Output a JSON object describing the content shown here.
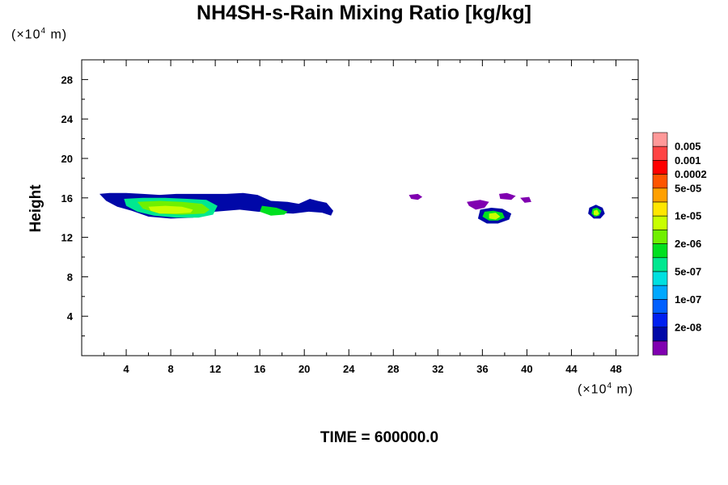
{
  "chart_data": {
    "type": "heatmap",
    "title": "NH4SH-s-Rain Mixing Ratio [kg/kg]",
    "ylabel": "Height",
    "y_unit": {
      "prefix": "(×10",
      "exp": "4",
      "suffix": " m)"
    },
    "x_unit": {
      "prefix": "(×10",
      "exp": "4",
      "suffix": " m)"
    },
    "xlim": [
      0,
      50
    ],
    "ylim": [
      0,
      30
    ],
    "x_ticks": [
      4,
      8,
      12,
      16,
      20,
      24,
      28,
      32,
      36,
      40,
      44,
      48
    ],
    "y_ticks": [
      4,
      8,
      12,
      16,
      20,
      24,
      28
    ],
    "footer": "TIME = 600000.0",
    "legend": {
      "colors": [
        "#ff9999",
        "#ff4444",
        "#ff0000",
        "#ff5500",
        "#ffa000",
        "#ffe600",
        "#c8ff00",
        "#70f000",
        "#00e020",
        "#00e890",
        "#00e0e0",
        "#00a8ff",
        "#0060ff",
        "#0020f0",
        "#0008a8",
        "#8000b0"
      ],
      "labels": [
        "0.005",
        "0.001",
        "0.0002",
        "5e-05",
        "1e-05",
        "2e-06",
        "5e-07",
        "1e-07",
        "2e-08"
      ]
    },
    "blobs": [
      {
        "x": [
          1.6,
          2.5,
          4.0,
          5.5,
          7.0,
          8.5,
          10.0,
          11.5,
          13.0,
          14.5,
          15.8,
          17.0,
          18.5,
          19.5,
          20.5,
          21.2,
          22.0,
          22.6,
          22.4,
          21.6,
          20.4,
          19.0,
          17.2,
          15.8,
          14.2,
          12.0,
          10.0,
          8.0,
          6.0,
          4.5,
          3.2,
          2.2
        ],
        "y": [
          16.4,
          16.5,
          16.5,
          16.4,
          16.3,
          16.4,
          16.4,
          16.4,
          16.4,
          16.5,
          16.3,
          15.7,
          15.6,
          15.4,
          15.9,
          15.7,
          15.5,
          14.7,
          14.2,
          14.5,
          14.6,
          14.4,
          14.5,
          14.6,
          14.8,
          14.6,
          14.0,
          13.9,
          14.1,
          14.7,
          15.1,
          15.7
        ],
        "level": 1
      },
      {
        "x": [
          3.8,
          5.5,
          7.5,
          9.5,
          11.2,
          12.2,
          11.8,
          10.5,
          8.5,
          6.5,
          5.0,
          4.0
        ],
        "y": [
          15.9,
          16.0,
          16.0,
          15.9,
          15.8,
          15.2,
          14.3,
          14.0,
          14.0,
          14.2,
          14.6,
          15.2
        ],
        "level": 6
      },
      {
        "x": [
          5.0,
          7.0,
          9.0,
          10.8,
          11.5,
          11.0,
          9.0,
          7.0,
          5.5
        ],
        "y": [
          15.6,
          15.7,
          15.6,
          15.4,
          14.8,
          14.4,
          14.3,
          14.4,
          14.9
        ],
        "level": 8
      },
      {
        "x": [
          6.0,
          7.5,
          9.0,
          10.0,
          9.8,
          8.5,
          7.0,
          6.2
        ],
        "y": [
          15.1,
          15.2,
          15.1,
          14.8,
          14.5,
          14.4,
          14.4,
          14.7
        ],
        "level": 9
      },
      {
        "x": [
          16.2,
          17.5,
          18.5,
          18.2,
          17.0,
          16.0
        ],
        "y": [
          15.2,
          15.0,
          14.6,
          14.3,
          14.2,
          14.6
        ],
        "level": 7
      },
      {
        "x": [
          29.4,
          30.2,
          30.6,
          30.2,
          29.6
        ],
        "y": [
          16.3,
          16.4,
          16.1,
          15.8,
          15.9
        ],
        "level": 0
      },
      {
        "x": [
          34.6,
          35.8,
          36.6,
          36.2,
          35.4,
          34.8
        ],
        "y": [
          15.6,
          15.8,
          15.6,
          15.0,
          14.8,
          15.2
        ],
        "level": 0
      },
      {
        "x": [
          37.5,
          38.2,
          39.0,
          38.6,
          37.6
        ],
        "y": [
          16.4,
          16.5,
          16.2,
          15.8,
          15.9
        ],
        "level": 0
      },
      {
        "x": [
          39.4,
          40.2,
          40.4,
          39.8
        ],
        "y": [
          16.0,
          16.1,
          15.6,
          15.5
        ],
        "level": 0
      },
      {
        "x": [
          35.8,
          36.8,
          37.8,
          38.6,
          38.4,
          37.4,
          36.4,
          35.6
        ],
        "y": [
          14.8,
          15.0,
          14.9,
          14.4,
          13.8,
          13.4,
          13.4,
          13.9
        ],
        "level": 1
      },
      {
        "x": [
          36.2,
          37.0,
          37.8,
          38.0,
          37.4,
          36.6,
          36.0
        ],
        "y": [
          14.6,
          14.7,
          14.5,
          14.0,
          13.7,
          13.7,
          14.1
        ],
        "level": 7
      },
      {
        "x": [
          36.6,
          37.2,
          37.6,
          37.2,
          36.6
        ],
        "y": [
          14.4,
          14.5,
          14.1,
          13.8,
          13.9
        ],
        "level": 9
      },
      {
        "x": [
          45.6,
          46.2,
          46.8,
          47.0,
          46.6,
          46.0,
          45.5
        ],
        "y": [
          15.0,
          15.3,
          15.0,
          14.4,
          13.9,
          13.9,
          14.4
        ],
        "level": 1
      },
      {
        "x": [
          45.9,
          46.3,
          46.7,
          46.5,
          46.1,
          45.8
        ],
        "y": [
          14.9,
          15.0,
          14.7,
          14.2,
          14.1,
          14.4
        ],
        "level": 7
      },
      {
        "x": [
          46.0,
          46.3,
          46.5,
          46.3,
          46.0
        ],
        "y": [
          14.7,
          14.8,
          14.4,
          14.2,
          14.3
        ],
        "level": 9
      }
    ]
  }
}
